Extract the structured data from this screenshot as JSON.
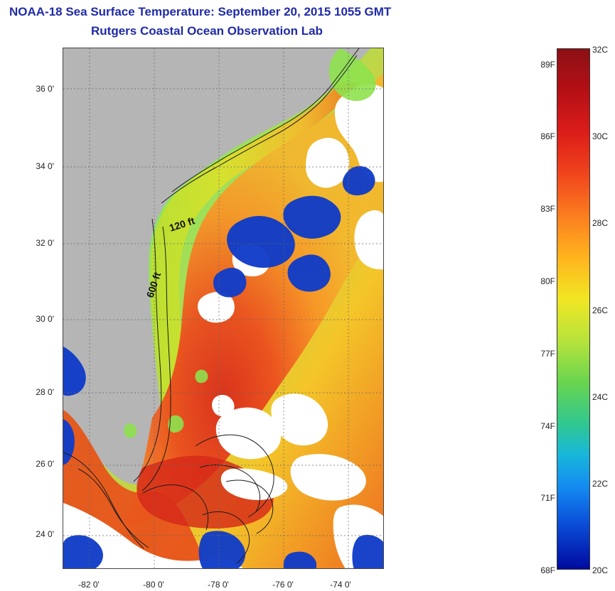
{
  "title": {
    "line1": "NOAA-18 Sea Surface Temperature:  September 20, 2015 1055 GMT",
    "line2": "Rutgers Coastal Ocean Observation Lab"
  },
  "map": {
    "y_ticks": [
      {
        "label": "36 0'"
      },
      {
        "label": "34 0'"
      },
      {
        "label": "32 0'"
      },
      {
        "label": "30 0'"
      },
      {
        "label": "28 0'"
      },
      {
        "label": "26 0'"
      },
      {
        "label": "24 0'"
      }
    ],
    "x_ticks": [
      {
        "label": "-82 0'"
      },
      {
        "label": "-80 0'"
      },
      {
        "label": "-78 0'"
      },
      {
        "label": "-76 0'"
      },
      {
        "label": "-74 0'"
      }
    ],
    "contours": {
      "inner": "120 ft",
      "outer": "600 ft"
    },
    "colors": {
      "land": "#b5b5b5",
      "cloud": "#ffffff",
      "cool": "#0f3fc8",
      "warm": "#f05a1e",
      "hot": "#da2d19",
      "coastal": "#9be34e"
    }
  },
  "colorbar": {
    "left_labels": [
      {
        "text": "89F"
      },
      {
        "text": "86F"
      },
      {
        "text": "83F"
      },
      {
        "text": "80F"
      },
      {
        "text": "77F"
      },
      {
        "text": "74F"
      },
      {
        "text": "71F"
      },
      {
        "text": "68F"
      }
    ],
    "right_labels": [
      {
        "text": "32C"
      },
      {
        "text": "30C"
      },
      {
        "text": "28C"
      },
      {
        "text": "26C"
      },
      {
        "text": "24C"
      },
      {
        "text": "22C"
      },
      {
        "text": "20C"
      }
    ]
  }
}
